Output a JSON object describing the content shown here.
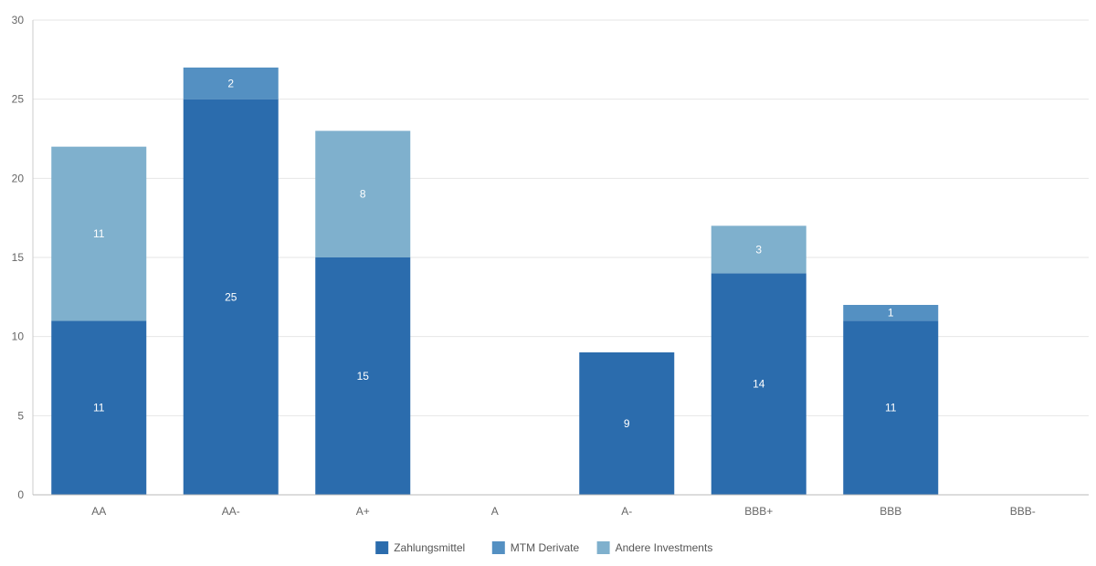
{
  "chart_data": {
    "type": "bar",
    "stacked": true,
    "title": "",
    "xlabel": "",
    "ylabel": "",
    "ylim": [
      0,
      30
    ],
    "yticks": [
      0,
      5,
      10,
      15,
      20,
      25,
      30
    ],
    "grid": true,
    "legend_position": "bottom-center",
    "categories": [
      "AA",
      "AA-",
      "A+",
      "A",
      "A-",
      "BBB+",
      "BBB",
      "BBB-"
    ],
    "series": [
      {
        "name": "Zahlungsmittel",
        "color": "#2b6cad",
        "values": [
          11,
          25,
          15,
          0,
          9,
          14,
          11,
          0
        ]
      },
      {
        "name": "MTM Derivate",
        "color": "#5490c2",
        "values": [
          0,
          2,
          0,
          0,
          0,
          0,
          1,
          0
        ]
      },
      {
        "name": "Andere Investments",
        "color": "#7fb0cd",
        "values": [
          11,
          0,
          8,
          0,
          0,
          3,
          0,
          0
        ]
      }
    ]
  }
}
